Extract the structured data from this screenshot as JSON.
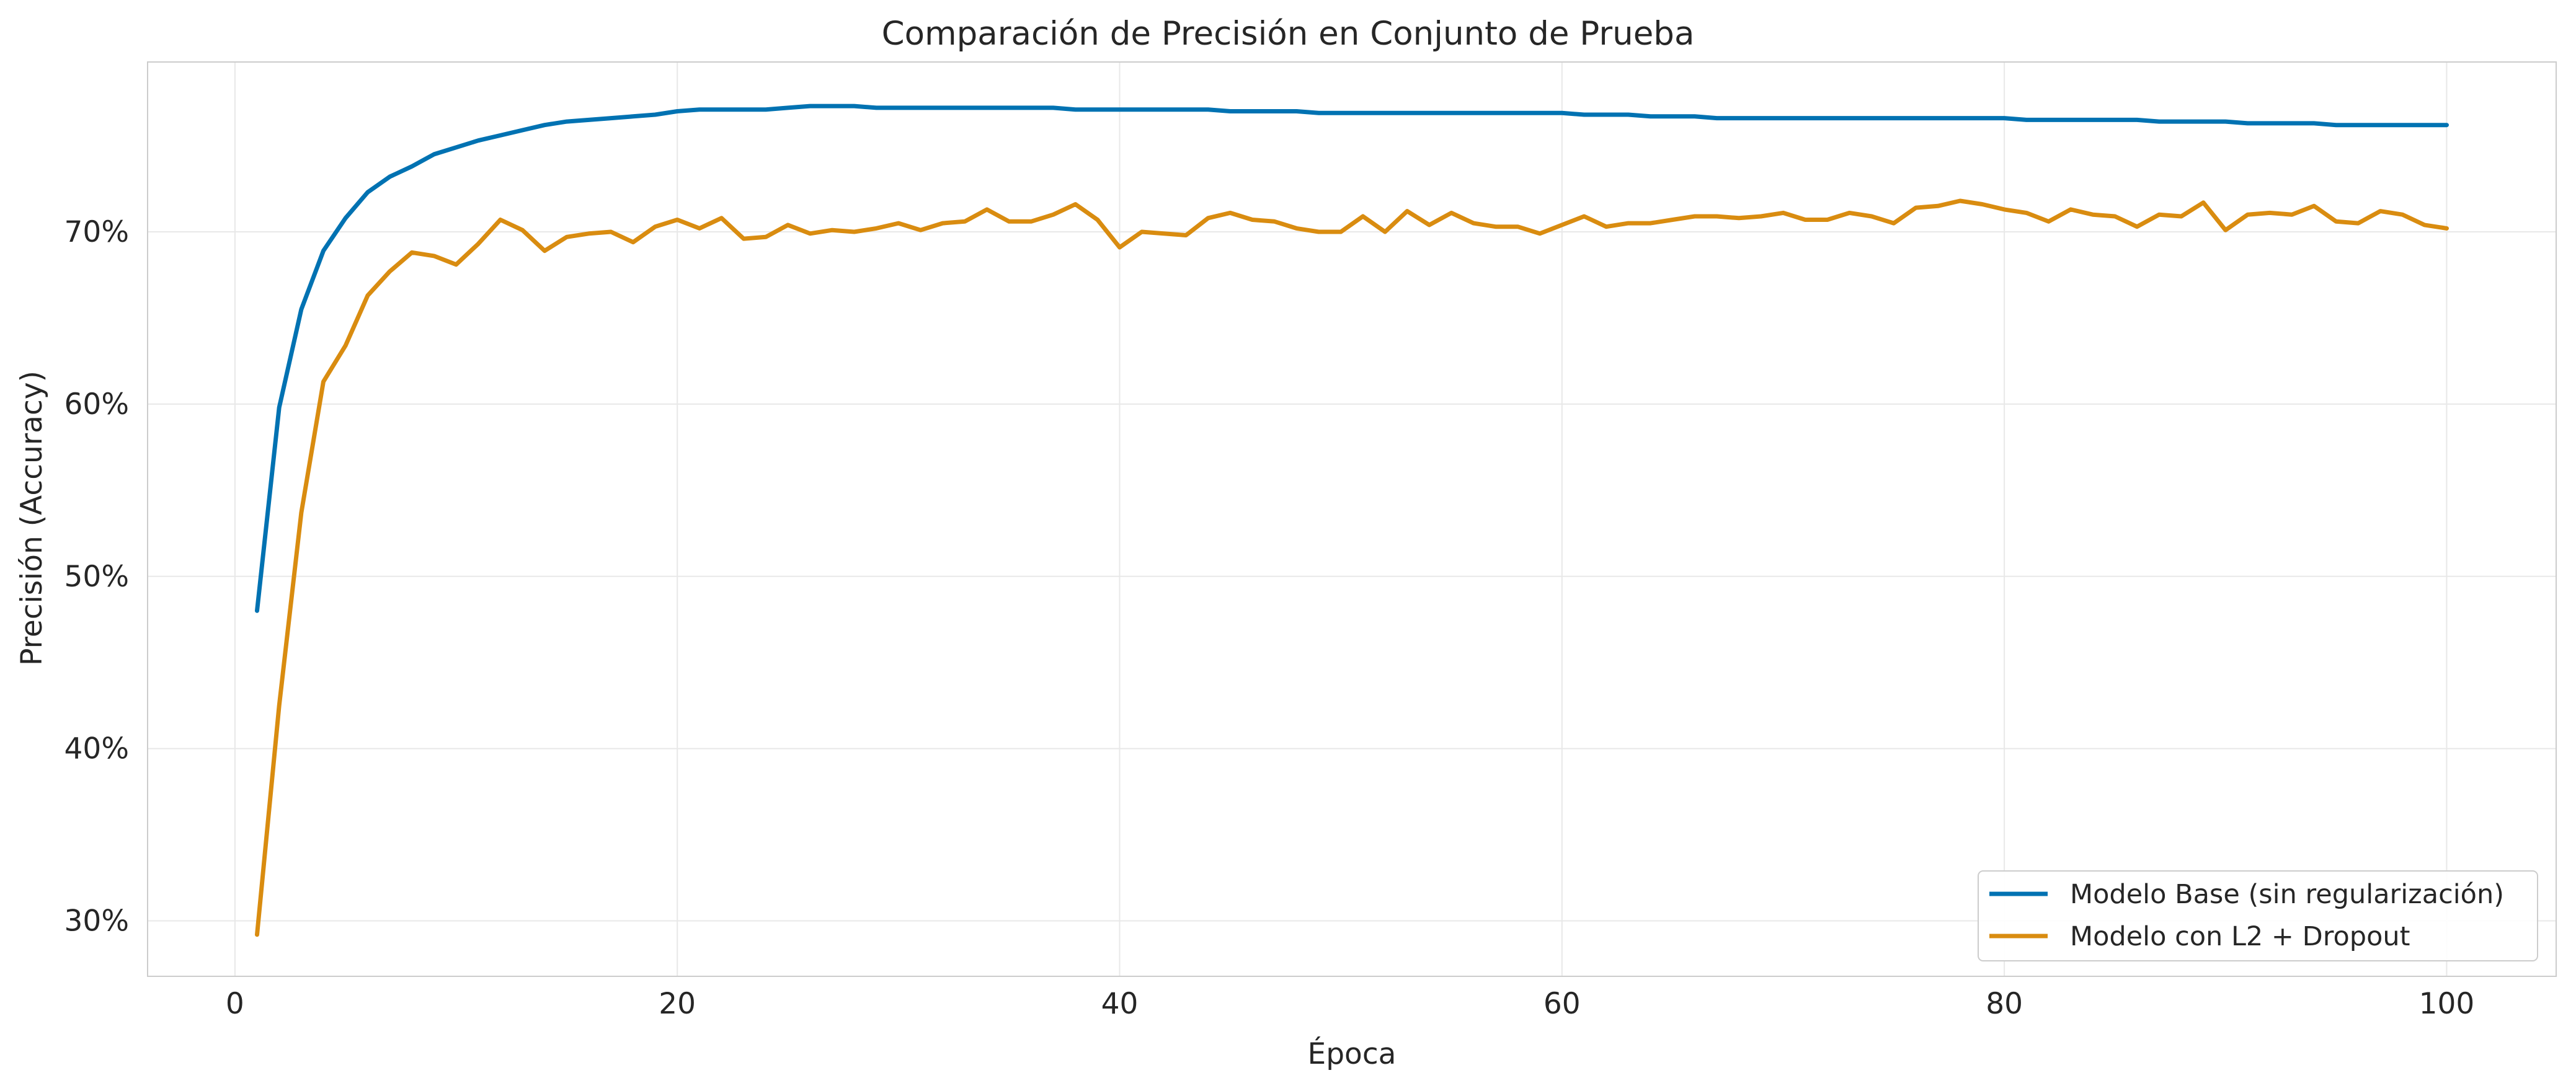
{
  "chart_data": {
    "type": "line",
    "title": "Comparación de Precisión en Conjunto de Prueba",
    "xlabel": "Época",
    "ylabel": "Precisión (Accuracy)",
    "xlim": [
      -3.95,
      104.95
    ],
    "ylim": [
      0.2678,
      0.7986
    ],
    "x_ticks": [
      0,
      20,
      40,
      60,
      80,
      100
    ],
    "x_tick_labels": [
      "0",
      "20",
      "40",
      "60",
      "80",
      "100"
    ],
    "y_ticks": [
      0.3,
      0.4,
      0.5,
      0.6,
      0.7
    ],
    "y_tick_labels": [
      "30%",
      "40%",
      "50%",
      "60%",
      "70%"
    ],
    "grid": true,
    "legend_position": "lower-right",
    "colors": {
      "base": "#0072B2",
      "reg": "#D98C10",
      "grid": "#E8E8E8",
      "spine": "#CCCCCC"
    },
    "x": [
      1,
      2,
      3,
      4,
      5,
      6,
      7,
      8,
      9,
      10,
      11,
      12,
      13,
      14,
      15,
      16,
      17,
      18,
      19,
      20,
      21,
      22,
      23,
      24,
      25,
      26,
      27,
      28,
      29,
      30,
      31,
      32,
      33,
      34,
      35,
      36,
      37,
      38,
      39,
      40,
      41,
      42,
      43,
      44,
      45,
      46,
      47,
      48,
      49,
      50,
      51,
      52,
      53,
      54,
      55,
      56,
      57,
      58,
      59,
      60,
      61,
      62,
      63,
      64,
      65,
      66,
      67,
      68,
      69,
      70,
      71,
      72,
      73,
      74,
      75,
      76,
      77,
      78,
      79,
      80,
      81,
      82,
      83,
      84,
      85,
      86,
      87,
      88,
      89,
      90,
      91,
      92,
      93,
      94,
      95,
      96,
      97,
      98,
      99,
      100
    ],
    "series": [
      {
        "name": "Modelo Base (sin regularización)",
        "color": "#0072B2",
        "values": [
          0.48,
          0.598,
          0.655,
          0.689,
          0.708,
          0.723,
          0.732,
          0.738,
          0.745,
          0.749,
          0.753,
          0.756,
          0.759,
          0.762,
          0.764,
          0.765,
          0.766,
          0.767,
          0.768,
          0.77,
          0.771,
          0.771,
          0.771,
          0.771,
          0.772,
          0.773,
          0.773,
          0.773,
          0.772,
          0.772,
          0.772,
          0.772,
          0.772,
          0.772,
          0.772,
          0.772,
          0.772,
          0.771,
          0.771,
          0.771,
          0.771,
          0.771,
          0.771,
          0.771,
          0.77,
          0.77,
          0.77,
          0.77,
          0.769,
          0.769,
          0.769,
          0.769,
          0.769,
          0.769,
          0.769,
          0.769,
          0.769,
          0.769,
          0.769,
          0.769,
          0.768,
          0.768,
          0.768,
          0.767,
          0.767,
          0.767,
          0.766,
          0.766,
          0.766,
          0.766,
          0.766,
          0.766,
          0.766,
          0.766,
          0.766,
          0.766,
          0.766,
          0.766,
          0.766,
          0.766,
          0.765,
          0.765,
          0.765,
          0.765,
          0.765,
          0.765,
          0.764,
          0.764,
          0.764,
          0.764,
          0.763,
          0.763,
          0.763,
          0.763,
          0.762,
          0.762,
          0.762,
          0.762,
          0.762,
          0.762
        ]
      },
      {
        "name": "Modelo con L2 + Dropout",
        "color": "#D98C10",
        "values": [
          0.292,
          0.425,
          0.537,
          0.613,
          0.634,
          0.663,
          0.677,
          0.688,
          0.686,
          0.681,
          0.693,
          0.707,
          0.701,
          0.689,
          0.697,
          0.699,
          0.7,
          0.694,
          0.703,
          0.707,
          0.702,
          0.708,
          0.696,
          0.697,
          0.704,
          0.699,
          0.701,
          0.7,
          0.702,
          0.705,
          0.701,
          0.705,
          0.706,
          0.713,
          0.706,
          0.706,
          0.71,
          0.716,
          0.707,
          0.691,
          0.7,
          0.699,
          0.698,
          0.708,
          0.711,
          0.707,
          0.706,
          0.702,
          0.7,
          0.7,
          0.709,
          0.7,
          0.712,
          0.704,
          0.711,
          0.705,
          0.703,
          0.703,
          0.699,
          0.704,
          0.709,
          0.703,
          0.705,
          0.705,
          0.707,
          0.709,
          0.709,
          0.708,
          0.709,
          0.711,
          0.707,
          0.707,
          0.711,
          0.709,
          0.705,
          0.714,
          0.715,
          0.718,
          0.716,
          0.713,
          0.711,
          0.706,
          0.713,
          0.71,
          0.709,
          0.703,
          0.71,
          0.709,
          0.717,
          0.701,
          0.71,
          0.711,
          0.71,
          0.715,
          0.706,
          0.705,
          0.712,
          0.71,
          0.704,
          0.702
        ]
      }
    ]
  }
}
